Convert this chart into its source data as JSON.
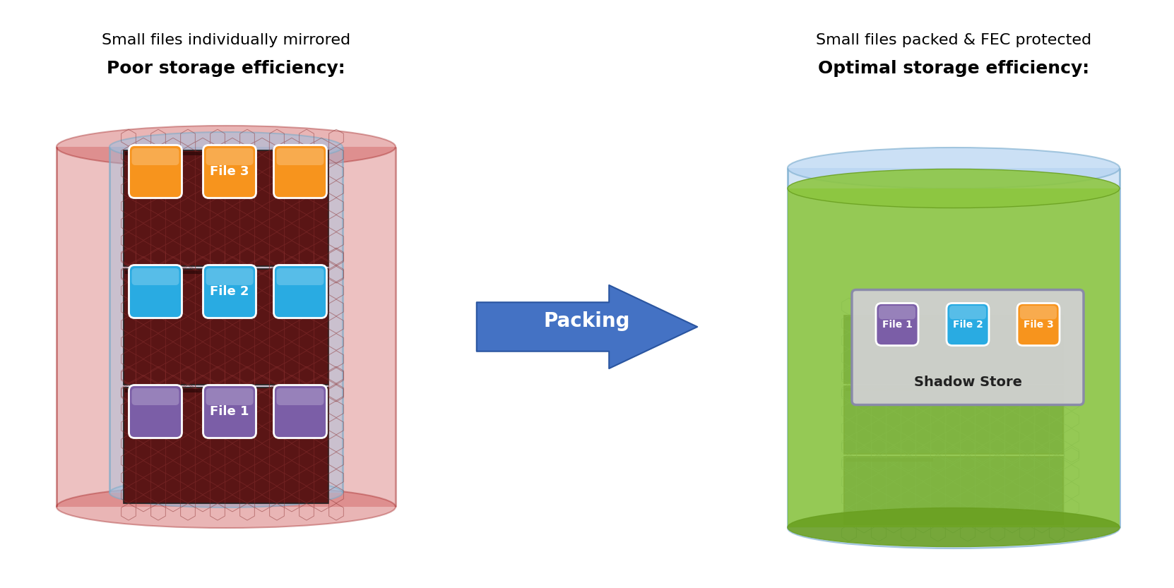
{
  "bg_color": "#ffffff",
  "title_left_bold": "Poor storage efficiency:",
  "title_left_normal": "Small files individually mirrored",
  "title_right_bold": "Optimal storage efficiency:",
  "title_right_normal": "Small files packed & FEC protected",
  "arrow_label": "Packing",
  "arrow_color": "#4472C4",
  "shadow_store_label": "Shadow Store",
  "file_labels": [
    "File 1",
    "File 2",
    "File 3"
  ],
  "file_colors": [
    "#7B5EA7",
    "#29ABE2",
    "#F7941D"
  ],
  "green_band_color": "#8DC63F",
  "green_band_dark": "#6AA020"
}
